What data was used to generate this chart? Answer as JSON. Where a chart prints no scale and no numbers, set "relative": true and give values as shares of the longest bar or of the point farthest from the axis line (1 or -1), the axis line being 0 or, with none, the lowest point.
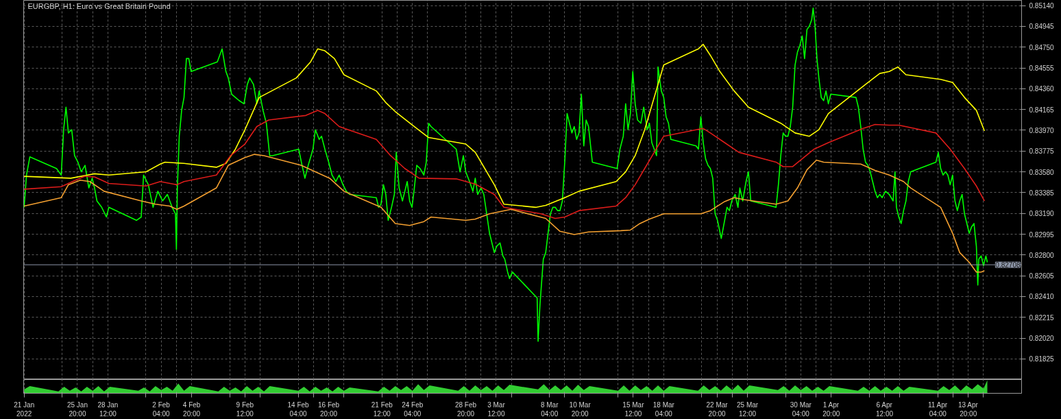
{
  "chart_data": [
    {
      "type": "line",
      "title": "EURGBP, H1: Euro vs Great Britain Pound",
      "tick_labels": "y",
      "grid": true,
      "xlim": [
        "2022-01-21T03:00",
        "2022-04-18T12:00"
      ],
      "ylim": [
        0.81631,
        0.85189
      ],
      "xticks": [
        {
          "value": "2022-01-21T04:00",
          "label": null
        },
        {
          "value": "2022-01-24T12:00",
          "label": null
        },
        {
          "value": "2022-01-25T20:00",
          "label": null
        },
        {
          "value": "2022-01-27T04:00",
          "label": null
        },
        {
          "value": "2022-01-28T12:00",
          "label": null
        },
        {
          "value": "2022-01-31T20:00",
          "label": null
        },
        {
          "value": "2022-02-02T04:00",
          "label": null
        },
        {
          "value": "2022-02-03T12:00",
          "label": null
        },
        {
          "value": "2022-02-04T20:00",
          "label": null
        },
        {
          "value": "2022-02-08T04:00",
          "label": null
        },
        {
          "value": "2022-02-09T12:00",
          "label": null
        },
        {
          "value": "2022-02-10T20:00",
          "label": null
        },
        {
          "value": "2022-02-14T04:00",
          "label": null
        },
        {
          "value": "2022-02-15T12:00",
          "label": null
        },
        {
          "value": "2022-02-16T20:00",
          "label": null
        },
        {
          "value": "2022-02-18T04:00",
          "label": null
        },
        {
          "value": "2022-02-21T12:00",
          "label": null
        },
        {
          "value": "2022-02-22T20:00",
          "label": null
        },
        {
          "value": "2022-02-24T04:00",
          "label": null
        },
        {
          "value": "2022-02-25T12:00",
          "label": null
        },
        {
          "value": "2022-02-28T20:00",
          "label": null
        },
        {
          "value": "2022-03-02T04:00",
          "label": null
        },
        {
          "value": "2022-03-03T12:00",
          "label": null
        },
        {
          "value": "2022-03-04T20:00",
          "label": null
        },
        {
          "value": "2022-03-08T04:00",
          "label": null
        },
        {
          "value": "2022-03-09T12:00",
          "label": null
        },
        {
          "value": "2022-03-10T20:00",
          "label": null
        },
        {
          "value": "2022-03-14T04:00",
          "label": null
        },
        {
          "value": "2022-03-15T12:00",
          "label": null
        },
        {
          "value": "2022-03-16T20:00",
          "label": null
        },
        {
          "value": "2022-03-18T04:00",
          "label": null
        },
        {
          "value": "2022-03-21T12:00",
          "label": null
        },
        {
          "value": "2022-03-22T20:00",
          "label": null
        },
        {
          "value": "2022-03-24T04:00",
          "label": null
        },
        {
          "value": "2022-03-25T12:00",
          "label": null
        },
        {
          "value": "2022-03-28T20:00",
          "label": null
        },
        {
          "value": "2022-03-30T04:00",
          "label": null
        },
        {
          "value": "2022-03-31T12:00",
          "label": null
        },
        {
          "value": "2022-04-01T20:00",
          "label": null
        },
        {
          "value": "2022-04-05T04:00",
          "label": null
        },
        {
          "value": "2022-04-06T12:00",
          "label": null
        },
        {
          "value": "2022-04-07T20:00",
          "label": null
        },
        {
          "value": "2022-04-11T04:00",
          "label": null
        },
        {
          "value": "2022-04-12T12:00",
          "label": null
        },
        {
          "value": "2022-04-13T20:00",
          "label": null
        },
        {
          "value": "2022-04-15T04:00",
          "label": null
        }
      ],
      "yticks": [
        {
          "value": 0.8514,
          "label": "0.85140"
        },
        0.84945,
        {
          "value": 0.8475,
          "label": "0.84750"
        },
        0.84555,
        {
          "value": 0.8436,
          "label": "0.84360"
        },
        0.84165,
        {
          "value": 0.8397,
          "label": "0.83970"
        },
        0.83775,
        {
          "value": 0.8358,
          "label": "0.83580"
        },
        0.83385,
        {
          "value": 0.8319,
          "label": "0.83190"
        },
        0.82995,
        {
          "value": 0.828,
          "label": "0.82800"
        },
        0.82605,
        {
          "value": 0.8241,
          "label": "0.82410"
        },
        0.82215,
        {
          "value": 0.8202,
          "label": "0.82020"
        },
        0.81825
      ],
      "ref_lines": [
        {
          "axis": "y",
          "value": 0.82708,
          "label": "0.82708",
          "color": "#8d96a8"
        }
      ],
      "series": [
        {
          "color": "#00ff00",
          "x": [
            "2022-01-21T04:00",
            "2022-01-21T09:00",
            "2022-01-21T16:00",
            "2022-01-24T00:00",
            "2022-01-24T10:00",
            "2022-01-24T15:00",
            "2022-01-24T20:00",
            "2022-01-25T01:00",
            "2022-01-25T08:00",
            "2022-01-25T14:00",
            "2022-01-25T21:00",
            "2022-01-26T04:00",
            "2022-01-26T12:00",
            "2022-01-26T20:00",
            "2022-01-27T03:00",
            "2022-01-27T08:00",
            "2022-01-27T13:00",
            "2022-01-27T23:00",
            "2022-01-28T09:00",
            "2022-01-28T14:00",
            "2022-01-31T00:00",
            "2022-01-31T10:00",
            "2022-01-31T15:00",
            "2022-02-01T01:00",
            "2022-02-01T11:00",
            "2022-02-01T21:00",
            "2022-02-02T07:00",
            "2022-02-02T17:00",
            "2022-02-03T03:00",
            "2022-02-03T10:00",
            "2022-02-03T12:00",
            "2022-02-03T14:00",
            "2022-02-03T18:00",
            "2022-02-03T23:00",
            "2022-02-04T04:00",
            "2022-02-04T09:00",
            "2022-02-04T14:00",
            "2022-02-04T19:00",
            "2022-02-07T02:00",
            "2022-02-07T12:00",
            "2022-02-07T20:00",
            "2022-02-08T01:00",
            "2022-02-08T08:00",
            "2022-02-08T16:00",
            "2022-02-09T00:00",
            "2022-02-09T10:00",
            "2022-02-09T17:00",
            "2022-02-09T22:00",
            "2022-02-10T06:00",
            "2022-02-10T13:00",
            "2022-02-10T18:00",
            "2022-02-11T02:00",
            "2022-02-11T09:00",
            "2022-02-11T16:00",
            "2022-02-11T22:00",
            "2022-02-14T05:00",
            "2022-02-14T12:00",
            "2022-02-14T18:00",
            "2022-02-15T01:00",
            "2022-02-15T11:00",
            "2022-02-15T16:00",
            "2022-02-16T00:00",
            "2022-02-16T05:00",
            "2022-02-16T12:00",
            "2022-02-16T20:00",
            "2022-02-17T03:00",
            "2022-02-17T11:00",
            "2022-02-17T18:00",
            "2022-02-18T02:00",
            "2022-02-18T09:00",
            "2022-02-18T16:00",
            "2022-02-21T00:00",
            "2022-02-21T05:00",
            "2022-02-21T10:00",
            "2022-02-21T15:00",
            "2022-02-21T20:00",
            "2022-02-22T01:00",
            "2022-02-22T08:00",
            "2022-02-22T14:00",
            "2022-02-22T18:00",
            "2022-02-23T00:00",
            "2022-02-23T07:00",
            "2022-02-23T12:00",
            "2022-02-23T17:00",
            "2022-02-23T22:00",
            "2022-02-24T03:00",
            "2022-02-24T08:00",
            "2022-02-24T13:00",
            "2022-02-24T20:00",
            "2022-02-25T04:00",
            "2022-02-25T09:00",
            "2022-02-25T14:00",
            "2022-02-25T19:00",
            "2022-02-28T00:00",
            "2022-02-28T08:00",
            "2022-02-28T15:00",
            "2022-02-28T20:00",
            "2022-03-01T04:00",
            "2022-03-01T11:00",
            "2022-03-01T16:00",
            "2022-03-01T21:00",
            "2022-03-02T04:00",
            "2022-03-02T10:00",
            "2022-03-02T14:00",
            "2022-03-02T18:00",
            "2022-03-02T22:00",
            "2022-03-03T03:00",
            "2022-03-03T08:00",
            "2022-03-03T13:00",
            "2022-03-03T20:00",
            "2022-03-04T02:00",
            "2022-03-04T06:00",
            "2022-03-04T12:00",
            "2022-03-04T16:00",
            "2022-03-04T22:00",
            "2022-03-07T02:00",
            "2022-03-07T04:00",
            "2022-03-07T08:00",
            "2022-03-07T15:00",
            "2022-03-07T20:00",
            "2022-03-08T01:00",
            "2022-03-08T06:00",
            "2022-03-08T11:00",
            "2022-03-08T16:00",
            "2022-03-08T21:00",
            "2022-03-09T02:00",
            "2022-03-09T07:00",
            "2022-03-09T12:00",
            "2022-03-09T17:00",
            "2022-03-09T22:00",
            "2022-03-10T03:00",
            "2022-03-10T08:00",
            "2022-03-10T13:00",
            "2022-03-10T18:00",
            "2022-03-10T23:00",
            "2022-03-11T04:00",
            "2022-03-11T09:00",
            "2022-03-11T14:00",
            "2022-03-11T22:00",
            "2022-03-14T02:00",
            "2022-03-14T08:00",
            "2022-03-14T15:00",
            "2022-03-14T20:00",
            "2022-03-15T01:00",
            "2022-03-15T06:00",
            "2022-03-15T11:00",
            "2022-03-15T16:00",
            "2022-03-15T21:00",
            "2022-03-16T04:00",
            "2022-03-16T10:00",
            "2022-03-16T17:00",
            "2022-03-16T22:00",
            "2022-03-17T03:00",
            "2022-03-17T08:00",
            "2022-03-17T13:00",
            "2022-03-17T16:00",
            "2022-03-17T23:00",
            "2022-03-18T04:00",
            "2022-03-18T09:00",
            "2022-03-18T14:00",
            "2022-03-18T19:00",
            "2022-03-21T00:00",
            "2022-03-21T05:00",
            "2022-03-21T10:00",
            "2022-03-21T15:00",
            "2022-03-21T20:00",
            "2022-03-22T01:00",
            "2022-03-22T06:00",
            "2022-03-22T11:00",
            "2022-03-22T16:00",
            "2022-03-22T21:00",
            "2022-03-23T05:00",
            "2022-03-23T12:00",
            "2022-03-23T17:00",
            "2022-03-23T22:00",
            "2022-03-24T03:00",
            "2022-03-24T10:00",
            "2022-03-24T16:00",
            "2022-03-24T20:00",
            "2022-03-25T02:00",
            "2022-03-25T09:00",
            "2022-03-25T14:00",
            "2022-03-25T19:00",
            "2022-03-28T00:00",
            "2022-03-28T05:00",
            "2022-03-28T10:00",
            "2022-03-28T15:00",
            "2022-03-28T20:00",
            "2022-03-29T01:00",
            "2022-03-29T06:00",
            "2022-03-29T11:00",
            "2022-03-29T16:00",
            "2022-03-29T21:00",
            "2022-03-30T02:00",
            "2022-03-30T07:00",
            "2022-03-30T12:00",
            "2022-03-30T17:00",
            "2022-03-30T22:00",
            "2022-03-31T03:00",
            "2022-03-31T06:00",
            "2022-03-31T10:00",
            "2022-03-31T14:00",
            "2022-03-31T18:00",
            "2022-03-31T23:00",
            "2022-04-01T04:00",
            "2022-04-01T09:00",
            "2022-04-01T14:00",
            "2022-04-01T19:00",
            "2022-04-04T00:00",
            "2022-04-04T05:00",
            "2022-04-04T10:00",
            "2022-04-04T15:00",
            "2022-04-04T20:00",
            "2022-04-05T01:00",
            "2022-04-05T06:00",
            "2022-04-05T11:00",
            "2022-04-05T16:00",
            "2022-04-05T21:00",
            "2022-04-06T02:00",
            "2022-04-06T07:00",
            "2022-04-06T14:00",
            "2022-04-06T22:00",
            "2022-04-07T06:00",
            "2022-04-07T10:00",
            "2022-04-07T13:00",
            "2022-04-07T18:00",
            "2022-04-07T23:00",
            "2022-04-08T04:00",
            "2022-04-08T09:00",
            "2022-04-08T14:00",
            "2022-04-08T19:00",
            "2022-04-11T00:00",
            "2022-04-11T05:00",
            "2022-04-11T10:00",
            "2022-04-11T15:00",
            "2022-04-11T20:00",
            "2022-04-12T01:00",
            "2022-04-12T06:00",
            "2022-04-12T11:00",
            "2022-04-12T16:00",
            "2022-04-12T21:00",
            "2022-04-13T02:00",
            "2022-04-13T07:00",
            "2022-04-13T12:00",
            "2022-04-13T17:00",
            "2022-04-13T22:00",
            "2022-04-14T03:00",
            "2022-04-14T08:00",
            "2022-04-14T13:00",
            "2022-04-14T16:00",
            "2022-04-14T18:00",
            "2022-04-14T23:00",
            "2022-04-15T04:00",
            "2022-04-15T09:00",
            "2022-04-15T12:00"
          ],
          "values": [
            0.83247,
            0.8355,
            0.8372,
            0.83611,
            0.8355,
            0.83975,
            0.84187,
            0.83945,
            0.83975,
            0.83732,
            0.83671,
            0.8358,
            0.83641,
            0.83429,
            0.8352,
            0.83429,
            0.83307,
            0.83247,
            0.83156,
            0.83247,
            0.83125,
            0.83156,
            0.8355,
            0.83459,
            0.83247,
            0.83398,
            0.83307,
            0.83368,
            0.83247,
            0.83186,
            0.82852,
            0.83429,
            0.83914,
            0.84157,
            0.84278,
            0.84643,
            0.84643,
            0.84521,
            0.84612,
            0.84734,
            0.84521,
            0.84461,
            0.84309,
            0.84278,
            0.84248,
            0.84218,
            0.844,
            0.84461,
            0.844,
            0.84218,
            0.84339,
            0.84157,
            0.84036,
            0.83732,
            0.83732,
            0.83793,
            0.83641,
            0.8352,
            0.83641,
            0.83793,
            0.83975,
            0.83884,
            0.83914,
            0.83793,
            0.83671,
            0.8355,
            0.83489,
            0.8355,
            0.83459,
            0.83398,
            0.83368,
            0.83338,
            0.83247,
            0.83277,
            0.83459,
            0.83368,
            0.83125,
            0.83247,
            0.83368,
            0.83763,
            0.83429,
            0.83307,
            0.83398,
            0.83489,
            0.83307,
            0.83247,
            0.83429,
            0.83641,
            0.83611,
            0.8355,
            0.83671,
            0.84036,
            0.84005,
            0.83793,
            0.8358,
            0.83732,
            0.8358,
            0.83489,
            0.83398,
            0.8352,
            0.83368,
            0.83429,
            0.83368,
            0.83247,
            0.83125,
            0.83004,
            0.82913,
            0.82822,
            0.82882,
            0.82913,
            0.82791,
            0.82761,
            0.8264,
            0.82579,
            0.8264,
            0.82397,
            0.8199,
            0.82336,
            0.82761,
            0.82822,
            0.83004,
            0.83186,
            0.83247,
            0.83247,
            0.83216,
            0.83216,
            0.83307,
            0.83671,
            0.84127,
            0.84036,
            0.83945,
            0.84005,
            0.83884,
            0.83945,
            0.84309,
            0.83823,
            0.84066,
            0.84005,
            0.83671,
            0.83611,
            0.83793,
            0.83914,
            0.84218,
            0.83975,
            0.84127,
            0.84521,
            0.84218,
            0.84066,
            0.84036,
            0.84187,
            0.83975,
            0.84036,
            0.83854,
            0.83793,
            0.83732,
            0.84564,
            0.84339,
            0.84278,
            0.84096,
            0.84036,
            0.83884,
            0.83823,
            0.83793,
            0.84096,
            0.83854,
            0.83702,
            0.83641,
            0.83611,
            0.8352,
            0.83186,
            0.83125,
            0.82955,
            0.83125,
            0.83247,
            0.83216,
            0.83307,
            0.83368,
            0.83247,
            0.83429,
            0.83307,
            0.83489,
            0.8358,
            0.83307,
            0.83247,
            0.83459,
            0.83732,
            0.83945,
            0.83914,
            0.83914,
            0.84005,
            0.84187,
            0.84582,
            0.84703,
            0.84764,
            0.84855,
            0.84643,
            0.84916,
            0.84946,
            0.85007,
            0.85116,
            0.84946,
            0.84643,
            0.84461,
            0.84278,
            0.84248,
            0.84339,
            0.84218,
            0.84309,
            0.84278,
            0.84187,
            0.84005,
            0.83793,
            0.83671,
            0.83641,
            0.8358,
            0.83489,
            0.83398,
            0.83338,
            0.83368,
            0.83338,
            0.83398,
            0.83368,
            0.83307,
            0.8358,
            0.83247,
            0.83156,
            0.83095,
            0.83216,
            0.83307,
            0.83489,
            0.8358,
            0.83671,
            0.83763,
            0.83611,
            0.8355,
            0.8358,
            0.8355,
            0.83459,
            0.8355,
            0.83307,
            0.83216,
            0.83307,
            0.83368,
            0.83186,
            0.83095,
            0.83004,
            0.83064,
            0.83095,
            0.82882,
            0.82518,
            0.82761,
            0.82791,
            0.827,
            0.82791,
            0.82731
          ]
        },
        {
          "color": "#ffff00",
          "x": [
            "2022-01-21T04:00",
            "2022-01-25T06:00",
            "2022-01-27T08:00",
            "2022-01-28T14:00",
            "2022-01-31T20:00",
            "2022-02-02T02:00",
            "2022-02-02T12:00",
            "2022-02-04T04:00",
            "2022-02-07T00:00",
            "2022-02-07T20:00",
            "2022-02-08T16:00",
            "2022-02-09T12:00",
            "2022-02-10T18:00",
            "2022-02-14T00:00",
            "2022-02-15T06:00",
            "2022-02-15T21:00",
            "2022-02-16T12:00",
            "2022-02-17T08:00",
            "2022-02-18T04:00",
            "2022-02-21T00:00",
            "2022-02-21T20:00",
            "2022-02-22T16:00",
            "2022-02-24T08:00",
            "2022-02-25T14:00",
            "2022-02-28T20:00",
            "2022-03-01T16:00",
            "2022-03-02T12:00",
            "2022-03-03T08:00",
            "2022-03-04T04:00",
            "2022-03-07T00:00",
            "2022-03-07T20:00",
            "2022-03-09T12:00",
            "2022-03-10T18:00",
            "2022-03-14T00:00",
            "2022-03-14T20:00",
            "2022-03-15T16:00",
            "2022-03-16T12:00",
            "2022-03-17T08:00",
            "2022-03-18T04:00",
            "2022-03-21T05:00",
            "2022-03-21T15:00",
            "2022-03-22T06:00",
            "2022-03-23T02:00",
            "2022-03-24T08:00",
            "2022-03-25T14:00",
            "2022-03-28T10:00",
            "2022-03-29T16:00",
            "2022-03-30T22:00",
            "2022-03-31T18:00",
            "2022-04-01T14:00",
            "2022-04-04T20:00",
            "2022-04-06T02:00",
            "2022-04-06T22:00",
            "2022-04-07T16:00",
            "2022-04-08T09:00",
            "2022-04-11T10:00",
            "2022-04-12T11:00",
            "2022-04-13T12:00",
            "2022-04-14T13:00",
            "2022-04-15T06:00"
          ],
          "values": [
            0.83538,
            0.8352,
            0.83562,
            0.8355,
            0.8358,
            0.83653,
            0.83671,
            0.83659,
            0.83623,
            0.83659,
            0.83793,
            0.83975,
            0.84278,
            0.84461,
            0.84612,
            0.84734,
            0.84716,
            0.84643,
            0.84491,
            0.84339,
            0.8423,
            0.84145,
            0.84005,
            0.83902,
            0.83841,
            0.83763,
            0.83611,
            0.83459,
            0.83277,
            0.83247,
            0.83265,
            0.83338,
            0.83398,
            0.83489,
            0.8358,
            0.83732,
            0.83975,
            0.84278,
            0.84582,
            0.84734,
            0.84776,
            0.84673,
            0.84521,
            0.84339,
            0.84187,
            0.84036,
            0.83945,
            0.83914,
            0.83975,
            0.84127,
            0.844,
            0.84503,
            0.84521,
            0.84564,
            0.84491,
            0.84448,
            0.84418,
            0.84278,
            0.84157,
            0.83963
          ]
        },
        {
          "color": "#dd1c1a",
          "x": [
            "2022-01-21T04:00",
            "2022-01-24T10:00",
            "2022-01-25T16:00",
            "2022-01-26T12:00",
            "2022-01-27T08:00",
            "2022-01-28T14:00",
            "2022-01-31T20:00",
            "2022-02-02T02:00",
            "2022-02-03T13:00",
            "2022-02-04T04:00",
            "2022-02-07T00:00",
            "2022-02-08T06:00",
            "2022-02-09T12:00",
            "2022-02-10T13:00",
            "2022-02-11T14:00",
            "2022-02-14T20:00",
            "2022-02-15T21:00",
            "2022-02-16T12:00",
            "2022-02-17T18:00",
            "2022-02-21T00:00",
            "2022-02-22T06:00",
            "2022-02-23T12:00",
            "2022-02-24T18:00",
            "2022-02-28T00:00",
            "2022-03-01T16:00",
            "2022-03-03T08:00",
            "2022-03-04T04:00",
            "2022-03-07T10:00",
            "2022-03-08T16:00",
            "2022-03-09T12:00",
            "2022-03-10T18:00",
            "2022-03-14T00:00",
            "2022-03-14T20:00",
            "2022-03-15T16:00",
            "2022-03-16T12:00",
            "2022-03-17T08:00",
            "2022-03-18T04:00",
            "2022-03-21T00:00",
            "2022-03-21T15:00",
            "2022-03-22T06:00",
            "2022-03-23T12:00",
            "2022-03-24T18:00",
            "2022-03-28T00:00",
            "2022-03-28T15:00",
            "2022-03-29T11:00",
            "2022-03-30T02:00",
            "2022-03-31T08:00",
            "2022-04-01T14:00",
            "2022-04-04T15:00",
            "2022-04-05T16:00",
            "2022-04-06T22:00",
            "2022-04-07T18:00",
            "2022-04-11T00:00",
            "2022-04-12T06:00",
            "2022-04-13T12:00",
            "2022-04-14T13:00",
            "2022-04-15T06:00"
          ],
          "values": [
            0.83417,
            0.83441,
            0.83502,
            0.83538,
            0.83532,
            0.83471,
            0.83447,
            0.83489,
            0.83459,
            0.83489,
            0.8355,
            0.83732,
            0.83841,
            0.84005,
            0.84066,
            0.84109,
            0.84157,
            0.84127,
            0.84005,
            0.83884,
            0.83732,
            0.83611,
            0.8352,
            0.83514,
            0.83465,
            0.83368,
            0.83247,
            0.83186,
            0.83143,
            0.83156,
            0.83216,
            0.83259,
            0.83338,
            0.83459,
            0.83611,
            0.83763,
            0.83914,
            0.83975,
            0.83987,
            0.83945,
            0.83854,
            0.83763,
            0.83671,
            0.83629,
            0.83629,
            0.83684,
            0.83793,
            0.83854,
            0.83987,
            0.84024,
            0.84018,
            0.84018,
            0.83945,
            0.83793,
            0.83611,
            0.83447,
            0.83307
          ]
        },
        {
          "color": "#f4a030",
          "x": [
            "2022-01-21T04:00",
            "2022-01-24T10:00",
            "2022-01-25T01:00",
            "2022-01-26T02:00",
            "2022-01-26T22:00",
            "2022-01-28T04:00",
            "2022-01-31T10:00",
            "2022-02-01T16:00",
            "2022-02-02T22:00",
            "2022-02-03T13:00",
            "2022-02-04T04:00",
            "2022-02-07T00:00",
            "2022-02-08T01:00",
            "2022-02-09T12:00",
            "2022-02-10T08:00",
            "2022-02-11T04:00",
            "2022-02-14T10:00",
            "2022-02-15T16:00",
            "2022-02-16T22:00",
            "2022-02-18T04:00",
            "2022-02-21T10:00",
            "2022-02-22T16:00",
            "2022-02-23T22:00",
            "2022-02-25T04:00",
            "2022-02-25T19:00",
            "2022-02-28T20:00",
            "2022-03-01T16:00",
            "2022-03-02T22:00",
            "2022-03-04T19:00",
            "2022-03-07T20:00",
            "2022-03-09T02:00",
            "2022-03-10T08:00",
            "2022-03-11T14:00",
            "2022-03-14T10:00",
            "2022-03-15T06:00",
            "2022-03-16T02:00",
            "2022-03-16T22:00",
            "2022-03-18T04:00",
            "2022-03-21T10:00",
            "2022-03-22T06:00",
            "2022-03-23T12:00",
            "2022-03-24T08:00",
            "2022-03-25T04:00",
            "2022-03-28T00:00",
            "2022-03-29T01:00",
            "2022-03-29T21:00",
            "2022-03-30T17:00",
            "2022-03-31T13:00",
            "2022-04-01T04:00",
            "2022-04-04T10:00",
            "2022-04-05T16:00",
            "2022-04-06T22:00",
            "2022-04-08T04:00",
            "2022-04-08T19:00",
            "2022-04-11T10:00",
            "2022-04-12T11:00",
            "2022-04-13T02:00",
            "2022-04-13T22:00",
            "2022-04-14T13:00",
            "2022-04-14T23:00",
            "2022-04-15T06:00"
          ],
          "values": [
            0.83259,
            0.83338,
            0.83459,
            0.83502,
            0.83489,
            0.83398,
            0.83307,
            0.83277,
            0.83259,
            0.83228,
            0.83259,
            0.83429,
            0.83641,
            0.83714,
            0.83744,
            0.83732,
            0.83641,
            0.8358,
            0.8352,
            0.83398,
            0.83247,
            0.83095,
            0.83077,
            0.83113,
            0.83156,
            0.83125,
            0.83137,
            0.83186,
            0.83228,
            0.83143,
            0.83022,
            0.82992,
            0.83016,
            0.83028,
            0.83034,
            0.83095,
            0.83137,
            0.83186,
            0.83186,
            0.83216,
            0.83301,
            0.83338,
            0.8332,
            0.83277,
            0.83307,
            0.83429,
            0.83599,
            0.8369,
            0.83671,
            0.83653,
            0.83593,
            0.8355,
            0.83489,
            0.83429,
            0.83247,
            0.83004,
            0.82822,
            0.82731,
            0.8264,
            0.8264,
            0.82652
          ]
        }
      ]
    },
    {
      "type": "area",
      "relative": true,
      "tick_labels": "x",
      "grid": "x",
      "xlim": [
        "2022-01-21T03:00",
        "2022-04-18T12:00"
      ],
      "xticks": [
        {
          "value": "2022-01-21T04:00",
          "label": "21 Jan 2022"
        },
        {
          "value": "2022-01-24T12:00",
          "label": null
        },
        {
          "value": "2022-01-25T20:00",
          "label": "25 Jan 20:00"
        },
        {
          "value": "2022-01-27T04:00",
          "label": null
        },
        {
          "value": "2022-01-28T12:00",
          "label": "28 Jan 12:00"
        },
        {
          "value": "2022-01-31T20:00",
          "label": null
        },
        {
          "value": "2022-02-02T04:00",
          "label": "2 Feb 04:00"
        },
        {
          "value": "2022-02-03T12:00",
          "label": null
        },
        {
          "value": "2022-02-04T20:00",
          "label": "4 Feb 20:00"
        },
        {
          "value": "2022-02-08T04:00",
          "label": null
        },
        {
          "value": "2022-02-09T12:00",
          "label": "9 Feb 12:00"
        },
        {
          "value": "2022-02-10T20:00",
          "label": null
        },
        {
          "value": "2022-02-14T04:00",
          "label": "14 Feb 04:00"
        },
        {
          "value": "2022-02-15T12:00",
          "label": null
        },
        {
          "value": "2022-02-16T20:00",
          "label": "16 Feb 20:00"
        },
        {
          "value": "2022-02-18T04:00",
          "label": null
        },
        {
          "value": "2022-02-21T12:00",
          "label": "21 Feb 12:00"
        },
        {
          "value": "2022-02-22T20:00",
          "label": null
        },
        {
          "value": "2022-02-24T04:00",
          "label": "24 Feb 04:00"
        },
        {
          "value": "2022-02-25T12:00",
          "label": null
        },
        {
          "value": "2022-02-28T20:00",
          "label": "28 Feb 20:00"
        },
        {
          "value": "2022-03-02T04:00",
          "label": null
        },
        {
          "value": "2022-03-03T12:00",
          "label": "3 Mar 12:00"
        },
        {
          "value": "2022-03-04T20:00",
          "label": null
        },
        {
          "value": "2022-03-08T04:00",
          "label": "8 Mar 04:00"
        },
        {
          "value": "2022-03-09T12:00",
          "label": null
        },
        {
          "value": "2022-03-10T20:00",
          "label": "10 Mar 20:00"
        },
        {
          "value": "2022-03-14T04:00",
          "label": null
        },
        {
          "value": "2022-03-15T12:00",
          "label": "15 Mar 12:00"
        },
        {
          "value": "2022-03-16T20:00",
          "label": null
        },
        {
          "value": "2022-03-18T04:00",
          "label": "18 Mar 04:00"
        },
        {
          "value": "2022-03-21T12:00",
          "label": null
        },
        {
          "value": "2022-03-22T20:00",
          "label": "22 Mar 20:00"
        },
        {
          "value": "2022-03-24T04:00",
          "label": null
        },
        {
          "value": "2022-03-25T12:00",
          "label": "25 Mar 12:00"
        },
        {
          "value": "2022-03-28T20:00",
          "label": null
        },
        {
          "value": "2022-03-30T04:00",
          "label": "30 Mar 04:00"
        },
        {
          "value": "2022-03-31T12:00",
          "label": null
        },
        {
          "value": "2022-04-01T20:00",
          "label": "1 Apr 20:00"
        },
        {
          "value": "2022-04-05T04:00",
          "label": null
        },
        {
          "value": "2022-04-06T12:00",
          "label": "6 Apr 12:00"
        },
        {
          "value": "2022-04-07T20:00",
          "label": null
        },
        {
          "value": "2022-04-11T04:00",
          "label": "11 Apr 04:00"
        },
        {
          "value": "2022-04-12T12:00",
          "label": null
        },
        {
          "value": "2022-04-13T20:00",
          "label": "13 Apr 20:00"
        },
        {
          "value": "2022-04-15T04:00",
          "label": null
        }
      ],
      "x": [
        "2022-01-21T04:00",
        "2022-01-21T16:00",
        "2022-01-24T04:00",
        "2022-01-24T16:00",
        "2022-01-25T04:00",
        "2022-01-25T16:00",
        "2022-01-26T04:00",
        "2022-01-26T16:00",
        "2022-01-27T04:00",
        "2022-01-27T16:00",
        "2022-01-28T04:00",
        "2022-01-28T16:00",
        "2022-01-31T04:00",
        "2022-01-31T16:00",
        "2022-02-01T04:00",
        "2022-02-01T16:00",
        "2022-02-02T04:00",
        "2022-02-02T16:00",
        "2022-02-03T04:00",
        "2022-02-03T16:00",
        "2022-02-04T04:00",
        "2022-02-04T16:00",
        "2022-02-07T04:00",
        "2022-02-07T16:00",
        "2022-02-08T04:00",
        "2022-02-08T16:00",
        "2022-02-09T04:00",
        "2022-02-09T16:00",
        "2022-02-10T04:00",
        "2022-02-10T16:00",
        "2022-02-11T04:00",
        "2022-02-11T16:00",
        "2022-02-14T04:00",
        "2022-02-14T16:00",
        "2022-02-15T04:00",
        "2022-02-15T16:00",
        "2022-02-16T04:00",
        "2022-02-16T16:00",
        "2022-02-17T04:00",
        "2022-02-17T16:00",
        "2022-02-18T04:00",
        "2022-02-18T16:00",
        "2022-02-21T04:00",
        "2022-02-21T16:00",
        "2022-02-22T04:00",
        "2022-02-22T16:00",
        "2022-02-23T04:00",
        "2022-02-23T16:00",
        "2022-02-24T04:00",
        "2022-02-24T16:00",
        "2022-02-25T04:00",
        "2022-02-25T16:00",
        "2022-02-28T04:00",
        "2022-02-28T16:00",
        "2022-03-01T04:00",
        "2022-03-01T16:00",
        "2022-03-02T04:00",
        "2022-03-02T16:00",
        "2022-03-03T04:00",
        "2022-03-03T16:00",
        "2022-03-04T04:00",
        "2022-03-04T16:00",
        "2022-03-07T04:00",
        "2022-03-07T16:00",
        "2022-03-08T04:00",
        "2022-03-08T16:00",
        "2022-03-09T04:00",
        "2022-03-09T16:00",
        "2022-03-10T04:00",
        "2022-03-10T16:00",
        "2022-03-11T04:00",
        "2022-03-11T16:00",
        "2022-03-14T04:00",
        "2022-03-14T16:00",
        "2022-03-15T04:00",
        "2022-03-15T16:00",
        "2022-03-16T04:00",
        "2022-03-16T16:00",
        "2022-03-17T04:00",
        "2022-03-17T16:00",
        "2022-03-18T04:00",
        "2022-03-18T16:00",
        "2022-03-21T04:00",
        "2022-03-21T16:00",
        "2022-03-22T04:00",
        "2022-03-22T16:00",
        "2022-03-23T04:00",
        "2022-03-23T16:00",
        "2022-03-24T04:00",
        "2022-03-24T16:00",
        "2022-03-25T04:00",
        "2022-03-25T16:00",
        "2022-03-28T04:00",
        "2022-03-28T16:00",
        "2022-03-29T04:00",
        "2022-03-29T16:00",
        "2022-03-30T04:00",
        "2022-03-30T16:00",
        "2022-03-31T04:00",
        "2022-03-31T16:00",
        "2022-04-01T04:00",
        "2022-04-01T16:00",
        "2022-04-04T04:00",
        "2022-04-04T16:00",
        "2022-04-05T04:00",
        "2022-04-05T16:00",
        "2022-04-06T04:00",
        "2022-04-06T16:00",
        "2022-04-07T04:00",
        "2022-04-07T16:00",
        "2022-04-08T04:00",
        "2022-04-08T16:00",
        "2022-04-11T04:00",
        "2022-04-11T16:00",
        "2022-04-12T04:00",
        "2022-04-12T16:00",
        "2022-04-13T04:00",
        "2022-04-13T16:00",
        "2022-04-14T04:00",
        "2022-04-14T16:00",
        "2022-04-15T04:00",
        "2022-04-15T12:00"
      ],
      "series": [
        {
          "color": "#32cd32",
          "values": [
            0.3,
            0.55,
            0.15,
            0.5,
            0.2,
            0.45,
            0.15,
            0.5,
            0.2,
            0.55,
            0.15,
            0.5,
            0.2,
            0.45,
            0.15,
            0.55,
            0.25,
            0.5,
            0.2,
            0.75,
            0.2,
            0.55,
            0.15,
            0.5,
            0.2,
            0.45,
            0.15,
            0.55,
            0.2,
            0.5,
            0.15,
            0.55,
            0.2,
            0.5,
            0.15,
            0.5,
            0.2,
            0.45,
            0.15,
            0.5,
            0.2,
            0.45,
            0.15,
            0.5,
            0.2,
            0.55,
            0.25,
            0.55,
            0.2,
            0.7,
            0.25,
            0.6,
            0.2,
            0.55,
            0.2,
            0.6,
            0.25,
            0.55,
            0.2,
            0.6,
            0.25,
            0.65,
            0.3,
            0.7,
            0.25,
            0.6,
            0.25,
            0.6,
            0.2,
            0.65,
            0.25,
            0.55,
            0.2,
            0.6,
            0.2,
            0.6,
            0.25,
            0.55,
            0.2,
            0.6,
            0.2,
            0.55,
            0.2,
            0.6,
            0.25,
            0.55,
            0.2,
            0.6,
            0.25,
            0.65,
            0.2,
            0.6,
            0.25,
            0.55,
            0.2,
            0.6,
            0.25,
            0.55,
            0.2,
            0.5,
            0.2,
            0.55,
            0.2,
            0.5,
            0.2,
            0.55,
            0.2,
            0.5,
            0.2,
            0.55,
            0.2,
            0.5,
            0.2,
            0.55,
            0.25,
            0.6,
            0.2,
            0.6,
            0.3,
            0.7,
            0.35,
            1
          ]
        }
      ]
    }
  ]
}
